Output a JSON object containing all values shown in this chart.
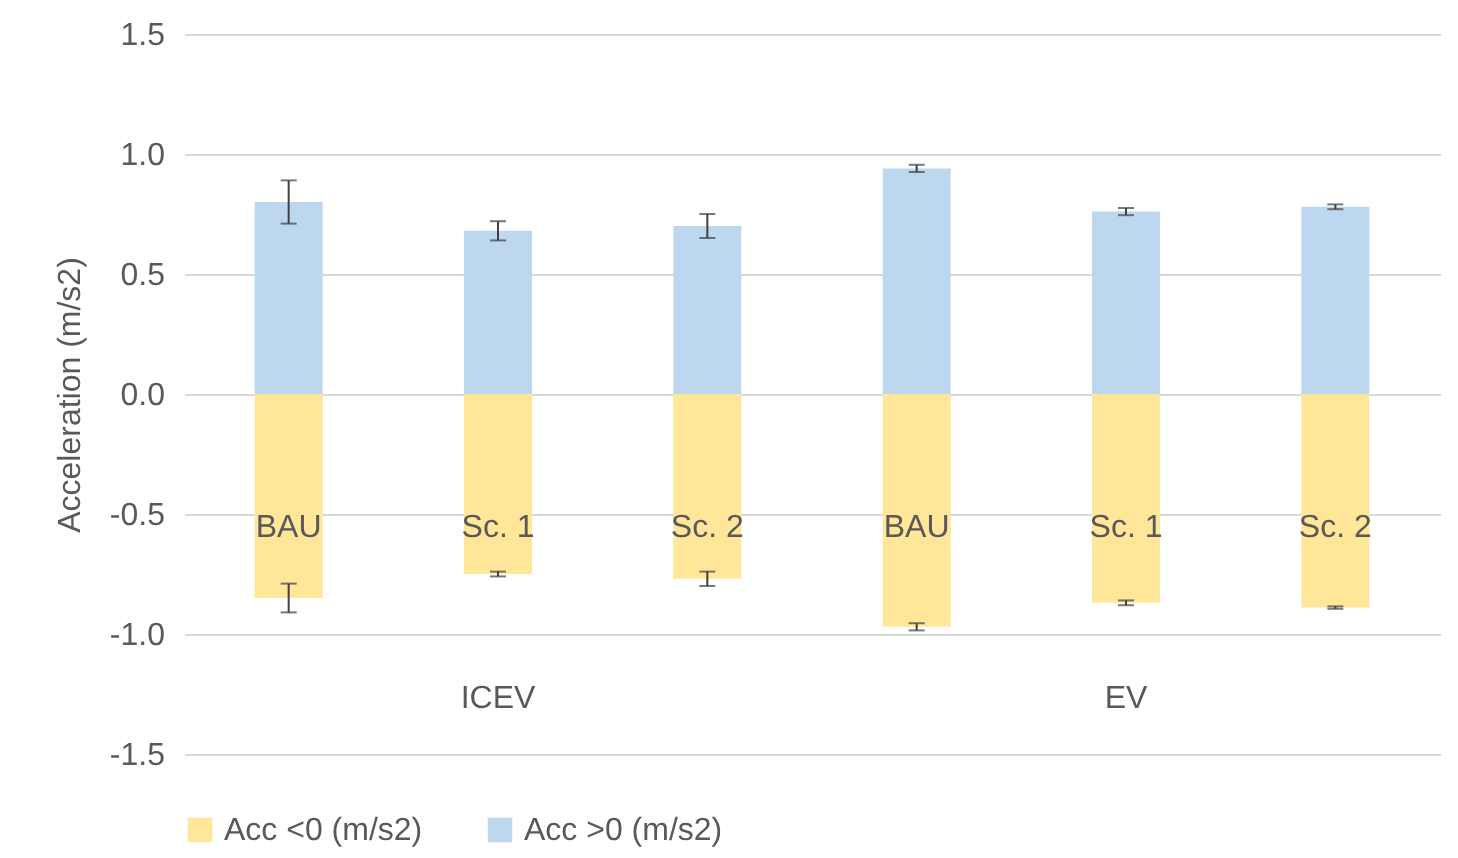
{
  "chart_data": {
    "type": "bar",
    "ylabel": "Acceleration (m/s2)",
    "categories": [
      "BAU",
      "Sc. 1",
      "Sc. 2",
      "BAU",
      "Sc. 1",
      "Sc. 2"
    ],
    "series": [
      {
        "name": "Acc <0 (m/s2)",
        "color": "#ffe699",
        "values": [
          -0.85,
          -0.75,
          -0.77,
          -0.97,
          -0.87,
          -0.89
        ],
        "errors": [
          0.06,
          0.01,
          0.03,
          0.015,
          0.01,
          0.005
        ]
      },
      {
        "name": "Acc >0 (m/s2)",
        "color": "#bdd7ee",
        "values": [
          0.8,
          0.68,
          0.7,
          0.94,
          0.76,
          0.78
        ],
        "errors": [
          0.09,
          0.04,
          0.05,
          0.015,
          0.015,
          0.01
        ]
      }
    ],
    "annotations": [
      "ICEV",
      "EV"
    ],
    "ylim": [
      -1.5,
      1.5
    ],
    "yticks": [
      {
        "value": -1.5,
        "label": "-1.5"
      },
      {
        "value": -1,
        "label": "-1.0"
      },
      {
        "value": -0.5,
        "label": "-0.5"
      },
      {
        "value": 0,
        "label": "0.0"
      },
      {
        "value": 0.5,
        "label": "0.5"
      },
      {
        "value": 1,
        "label": "1.0"
      },
      {
        "value": 1.5,
        "label": "1.5"
      }
    ],
    "stacked": true,
    "grid": "y",
    "legend": "bottom"
  }
}
